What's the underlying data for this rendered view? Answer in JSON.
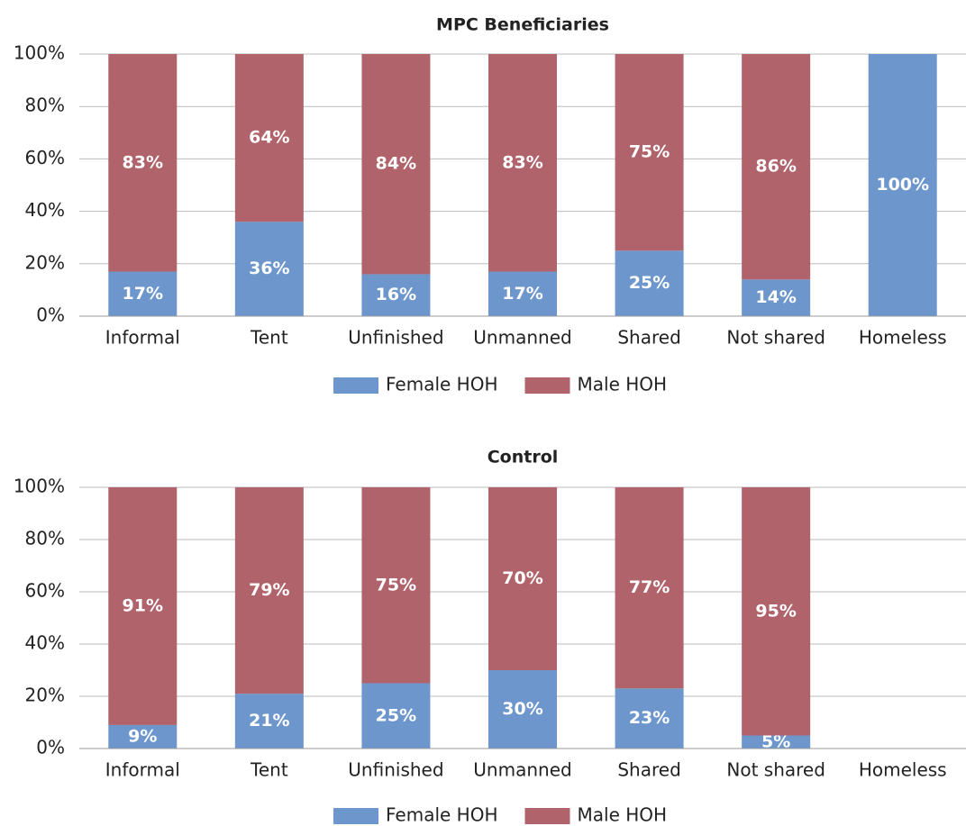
{
  "chart_data": [
    {
      "type": "bar",
      "stacked": true,
      "title": "MPC Beneficiaries",
      "categories": [
        "Informal",
        "Tent",
        "Unfinished",
        "Unmanned",
        "Shared",
        "Not shared",
        "Homeless"
      ],
      "series": [
        {
          "name": "Female HOH",
          "color": "#6c96cc",
          "values": [
            17,
            36,
            16,
            17,
            25,
            14,
            100
          ],
          "value_labels": [
            "17%",
            "36%",
            "16%",
            "17%",
            "25%",
            "14%",
            "100%"
          ]
        },
        {
          "name": "Male HOH",
          "color": "#b0636b",
          "values": [
            83,
            64,
            84,
            83,
            75,
            86,
            null
          ],
          "value_labels": [
            "83%",
            "64%",
            "84%",
            "83%",
            "75%",
            "86%",
            null
          ]
        }
      ],
      "ylim": [
        0,
        100
      ],
      "yticks": [
        {
          "value": 0,
          "label": "0%"
        },
        {
          "value": 20,
          "label": "20%"
        },
        {
          "value": 40,
          "label": "40%"
        },
        {
          "value": 60,
          "label": "60%"
        },
        {
          "value": 80,
          "label": "80%"
        },
        {
          "value": 100,
          "label": "100%"
        }
      ],
      "grid": true,
      "legend": "bottom"
    },
    {
      "type": "bar",
      "stacked": true,
      "title": "Control",
      "categories": [
        "Informal",
        "Tent",
        "Unfinished",
        "Unmanned",
        "Shared",
        "Not shared",
        "Homeless"
      ],
      "series": [
        {
          "name": "Female HOH",
          "color": "#6c96cc",
          "values": [
            9,
            21,
            25,
            30,
            23,
            5,
            null
          ],
          "value_labels": [
            "9%",
            "21%",
            "25%",
            "30%",
            "23%",
            "5%",
            null
          ]
        },
        {
          "name": "Male HOH",
          "color": "#b0636b",
          "values": [
            91,
            79,
            75,
            70,
            77,
            95,
            null
          ],
          "value_labels": [
            "91%",
            "79%",
            "75%",
            "70%",
            "77%",
            "95%",
            null
          ]
        }
      ],
      "ylim": [
        0,
        100
      ],
      "yticks": [
        {
          "value": 0,
          "label": "0%"
        },
        {
          "value": 20,
          "label": "20%"
        },
        {
          "value": 40,
          "label": "40%"
        },
        {
          "value": 60,
          "label": "60%"
        },
        {
          "value": 80,
          "label": "80%"
        },
        {
          "value": 100,
          "label": "100%"
        }
      ],
      "grid": true,
      "legend": "bottom"
    }
  ]
}
